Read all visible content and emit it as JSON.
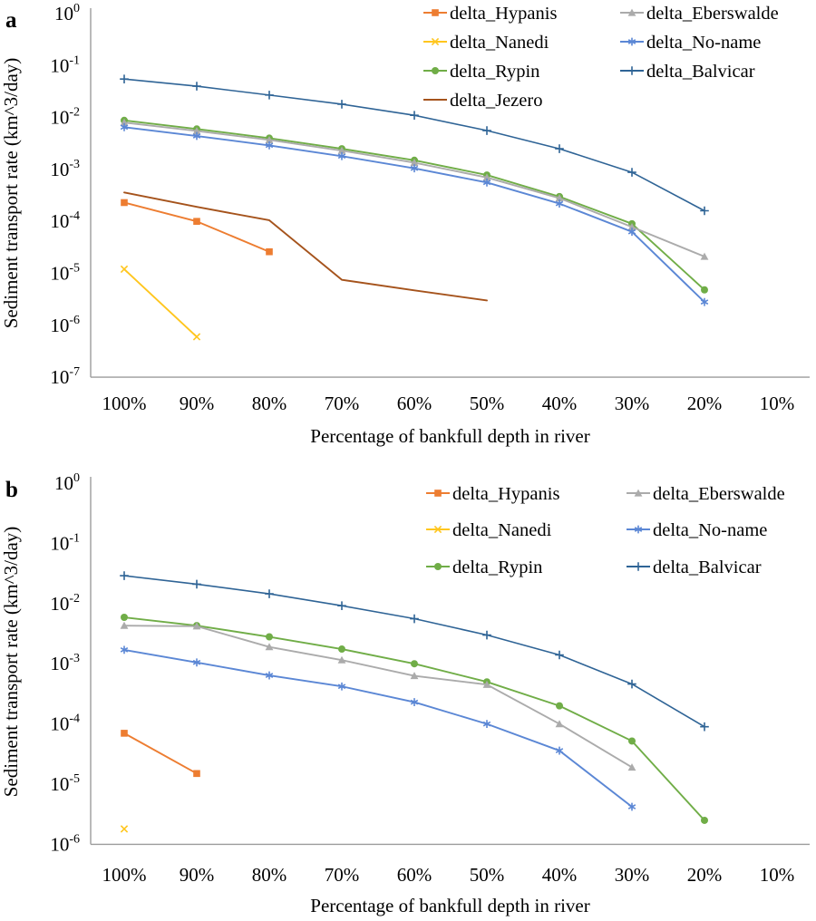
{
  "figure": {
    "background": "#ffffff",
    "text_color": "#000000",
    "axis_color": "#9C9C9C"
  },
  "chart_data": [
    {
      "panel": "a",
      "type": "line",
      "title": "",
      "grid": false,
      "x_axis": {
        "label": "Percentage of bankfull depth in river",
        "tick_labels": [
          "100%",
          "90%",
          "80%",
          "70%",
          "60%",
          "50%",
          "40%",
          "30%",
          "20%",
          "10%"
        ]
      },
      "y_axis": {
        "label": "Sediment transport rate (km^3/day)",
        "scale": "log",
        "tick_labels": [
          "10^0",
          "10^-1",
          "10^-2",
          "10^-3",
          "10^-4",
          "10^-5",
          "10^-6",
          "10^-7"
        ],
        "range_exponents": [
          0,
          -7
        ]
      },
      "legend": {
        "position": "top-center-two-columns",
        "columns": [
          [
            "delta_Hypanis",
            "delta_Nanedi",
            "delta_Rypin",
            "delta_Jezero"
          ],
          [
            "delta_Eberswalde",
            "delta_No-name",
            "delta_Balvicar"
          ]
        ]
      },
      "series": [
        {
          "name": "delta_Hypanis",
          "color": "#ED7D31",
          "marker": "square",
          "values": [
            0.00023,
            0.0001,
            2.6e-05
          ]
        },
        {
          "name": "delta_Nanedi",
          "color": "#FFC61E",
          "marker": "x",
          "values": [
            1.2e-05,
            6e-07
          ]
        },
        {
          "name": "delta_Rypin",
          "color": "#70AD47",
          "marker": "circle",
          "values": [
            0.0088,
            0.006,
            0.004,
            0.0025,
            0.0015,
            0.00078,
            0.0003,
            9e-05,
            4.8e-06
          ]
        },
        {
          "name": "delta_Jezero",
          "color": "#A5531C",
          "marker": "none",
          "values": [
            0.00036,
            0.00019,
            0.000105,
            7.5e-06,
            4.7e-06,
            3e-06
          ]
        },
        {
          "name": "delta_Eberswalde",
          "color": "#ABABAB",
          "marker": "triangle",
          "values": [
            0.008,
            0.0055,
            0.0037,
            0.0023,
            0.00135,
            0.0007,
            0.00028,
            7.8e-05,
            2.1e-05
          ]
        },
        {
          "name": "delta_No-name",
          "color": "#5B87D5",
          "marker": "asterisk",
          "values": [
            0.0065,
            0.0044,
            0.0029,
            0.0018,
            0.00105,
            0.00056,
            0.00022,
            6.3e-05,
            2.8e-06
          ]
        },
        {
          "name": "delta_Balvicar",
          "color": "#2F6496",
          "marker": "plus",
          "values": [
            0.055,
            0.04,
            0.027,
            0.018,
            0.011,
            0.0056,
            0.0025,
            0.00088,
            0.00016
          ]
        }
      ]
    },
    {
      "panel": "b",
      "type": "line",
      "title": "",
      "grid": false,
      "x_axis": {
        "label": "Percentage of bankfull depth in river",
        "tick_labels": [
          "100%",
          "90%",
          "80%",
          "70%",
          "60%",
          "50%",
          "40%",
          "30%",
          "20%",
          "10%"
        ]
      },
      "y_axis": {
        "label": "Sediment transport rate (km^3/day)",
        "scale": "log",
        "tick_labels": [
          "10^0",
          "10^-1",
          "10^-2",
          "10^-3",
          "10^-4",
          "10^-5",
          "10^-6"
        ],
        "range_exponents": [
          0,
          -6
        ]
      },
      "legend": {
        "position": "top-center-two-columns",
        "columns": [
          [
            "delta_Hypanis",
            "delta_Nanedi",
            "delta_Rypin"
          ],
          [
            "delta_Eberswalde",
            "delta_No-name",
            "delta_Balvicar"
          ]
        ]
      },
      "series": [
        {
          "name": "delta_Hypanis",
          "color": "#ED7D31",
          "marker": "square",
          "values": [
            7e-05,
            1.5e-05
          ]
        },
        {
          "name": "delta_Nanedi",
          "color": "#FFC61E",
          "marker": "x",
          "values": [
            1.8e-06
          ]
        },
        {
          "name": "delta_Rypin",
          "color": "#70AD47",
          "marker": "circle",
          "values": [
            0.0059,
            0.0043,
            0.0028,
            0.00175,
            0.001,
            0.0005,
            0.0002,
            5.2e-05,
            2.5e-06
          ]
        },
        {
          "name": "delta_Eberswalde",
          "color": "#ABABAB",
          "marker": "triangle",
          "values": [
            0.0043,
            0.0042,
            0.0019,
            0.00115,
            0.00063,
            0.00045,
            0.0001,
            1.9e-05
          ]
        },
        {
          "name": "delta_No-name",
          "color": "#5B87D5",
          "marker": "asterisk",
          "values": [
            0.0017,
            0.00105,
            0.00064,
            0.00042,
            0.00023,
            0.0001,
            3.6e-05,
            4.2e-06
          ]
        },
        {
          "name": "delta_Balvicar",
          "color": "#2F6496",
          "marker": "plus",
          "values": [
            0.029,
            0.021,
            0.0145,
            0.0092,
            0.0056,
            0.003,
            0.0014,
            0.00046,
            9e-05
          ]
        }
      ]
    }
  ]
}
